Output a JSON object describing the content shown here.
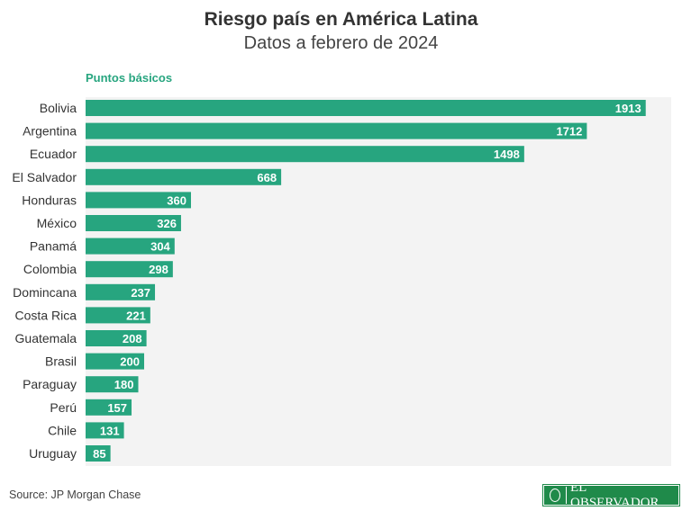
{
  "header": {
    "title": "Riesgo país en América Latina",
    "subtitle": "Datos a febrero de 2024"
  },
  "footer": {
    "source": "Source: JP Morgan Chase",
    "logo": "EL OBSERVADOR"
  },
  "colors": {
    "bar": "#27a57f",
    "label": "#ffffff",
    "background": "#f3f3f3"
  },
  "chart_data": {
    "type": "bar",
    "orientation": "horizontal",
    "title": "Riesgo país en América Latina",
    "subtitle": "Datos a febrero de 2024",
    "unit_label": "Puntos básicos",
    "categories": [
      "Bolivia",
      "Argentina",
      "Ecuador",
      "El Salvador",
      "Honduras",
      "México",
      "Panamá",
      "Colombia",
      "Domincana",
      "Costa Rica",
      "Guatemala",
      "Brasil",
      "Paraguay",
      "Perú",
      "Chile",
      "Uruguay"
    ],
    "values": [
      1913,
      1712,
      1498,
      668,
      360,
      326,
      304,
      298,
      237,
      221,
      208,
      200,
      180,
      157,
      131,
      85
    ],
    "xlim": [
      0,
      2000
    ],
    "grid": false
  }
}
